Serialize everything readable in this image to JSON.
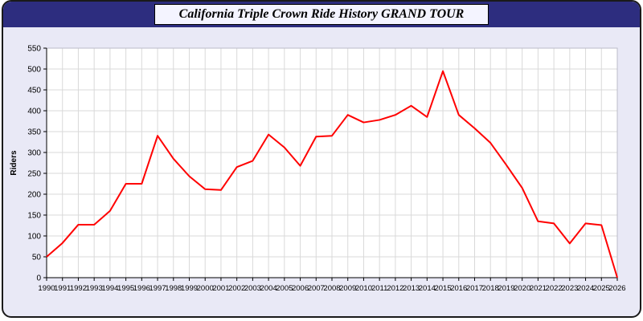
{
  "window": {
    "title": "California Triple Crown Ride History GRAND TOUR"
  },
  "colors": {
    "header_bg": "#2d2d7f",
    "page_bg": "#e9e9f6",
    "plot_bg": "#ffffff",
    "grid": "#d9d9d9",
    "axis": "#000000",
    "line": "#ff0000"
  },
  "chart_data": {
    "type": "line",
    "title": "California Triple Crown Ride History GRAND TOUR",
    "xlabel": "",
    "ylabel": "Riders",
    "ylim": [
      0,
      550
    ],
    "ytick_step": 50,
    "grid": true,
    "legend": "none",
    "line_color": "#ff0000",
    "categories": [
      "1990",
      "1991",
      "1992",
      "1993",
      "1994",
      "1995",
      "1996",
      "1997",
      "1998",
      "1999",
      "2000",
      "2001",
      "2002",
      "2003",
      "2004",
      "2005",
      "2006",
      "2007",
      "2008",
      "2009",
      "2010",
      "2011",
      "2012",
      "2013",
      "2014",
      "2015",
      "2016",
      "2017",
      "2018",
      "2019",
      "2020",
      "2021",
      "2022",
      "2023",
      "2024",
      "2025",
      "2026"
    ],
    "series": [
      {
        "name": "Riders",
        "values": [
          50,
          83,
          127,
          127,
          160,
          225,
          225,
          340,
          285,
          243,
          212,
          210,
          265,
          280,
          343,
          312,
          268,
          338,
          340,
          390,
          372,
          378,
          390,
          412,
          385,
          495,
          390,
          358,
          323,
          270,
          215,
          135,
          130,
          82,
          130,
          126,
          0
        ]
      }
    ]
  }
}
